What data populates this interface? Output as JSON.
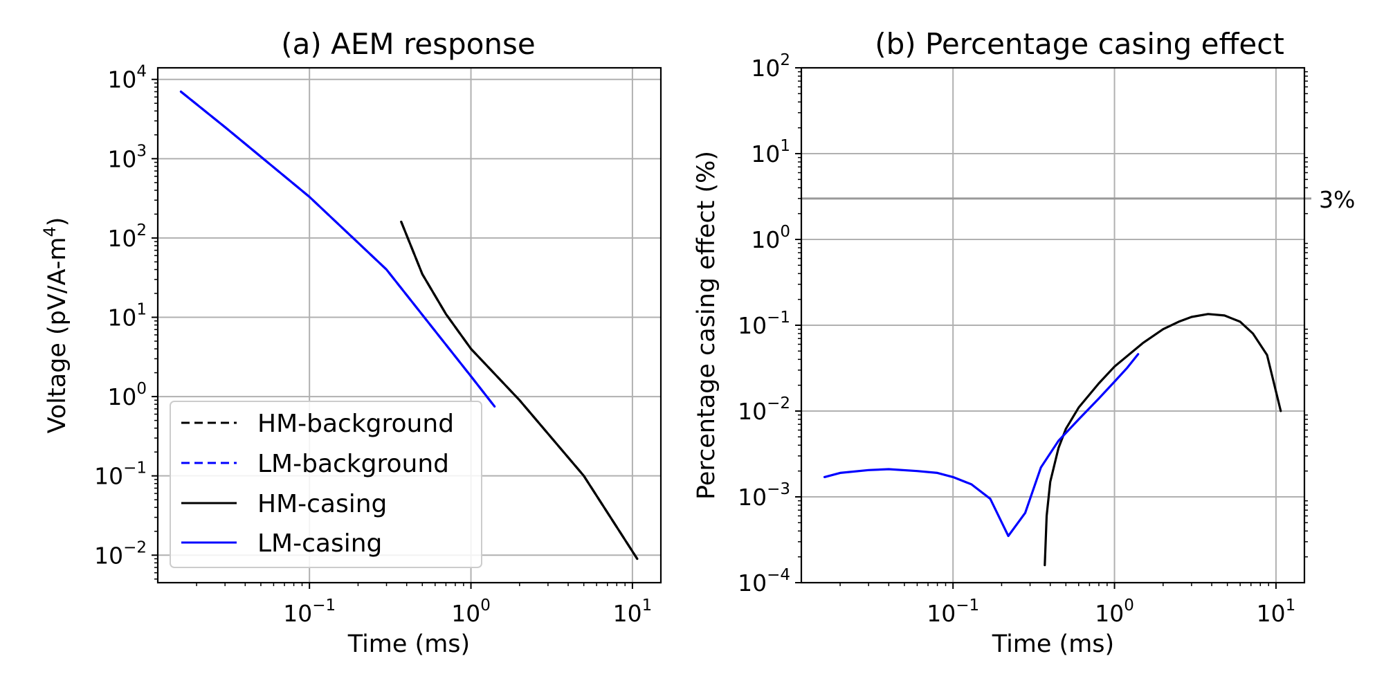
{
  "chart_data": [
    {
      "type": "line",
      "title": "(a) AEM response",
      "xlabel": "Time (ms)",
      "ylabel": "Voltage (pV/A-m",
      "ylabel_sup": "4",
      "ylabel_end": ")",
      "xscale": "log",
      "yscale": "log",
      "xlim": [
        0.0115,
        15
      ],
      "ylim": [
        0.0045,
        14000
      ],
      "xticks": [
        0.1,
        1,
        10
      ],
      "xtick_labels": [
        {
          "base": "10",
          "exp": "−1"
        },
        {
          "base": "10",
          "exp": "0"
        },
        {
          "base": "10",
          "exp": "1"
        }
      ],
      "yticks": [
        0.01,
        0.1,
        1,
        10,
        100,
        1000,
        10000
      ],
      "ytick_labels": [
        {
          "base": "10",
          "exp": "−2"
        },
        {
          "base": "10",
          "exp": "−1"
        },
        {
          "base": "10",
          "exp": "0"
        },
        {
          "base": "10",
          "exp": "1"
        },
        {
          "base": "10",
          "exp": "2"
        },
        {
          "base": "10",
          "exp": "3"
        },
        {
          "base": "10",
          "exp": "4"
        }
      ],
      "grid": true,
      "legend_position": "lower-left",
      "legend": [
        {
          "label": "HM-background",
          "color": "#000000",
          "style": "dashed"
        },
        {
          "label": "LM-background",
          "color": "#0000ff",
          "style": "dashed"
        },
        {
          "label": "HM-casing",
          "color": "#000000",
          "style": "solid"
        },
        {
          "label": "LM-casing",
          "color": "#0000ff",
          "style": "solid"
        }
      ],
      "series": [
        {
          "name": "HM-background",
          "color": "#000000",
          "style": "dashed",
          "x": [
            0.37,
            0.5,
            0.7,
            1.0,
            2.0,
            5.0,
            10.7
          ],
          "y": [
            160,
            35,
            11,
            4.0,
            0.9,
            0.1,
            0.009
          ]
        },
        {
          "name": "LM-background",
          "color": "#0000ff",
          "style": "dashed",
          "x": [
            0.016,
            0.03,
            0.1,
            0.3,
            1.0,
            1.4
          ],
          "y": [
            7000,
            2500,
            330,
            40,
            1.8,
            0.75
          ]
        },
        {
          "name": "HM-casing",
          "color": "#000000",
          "style": "solid",
          "x": [
            0.37,
            0.5,
            0.7,
            1.0,
            2.0,
            5.0,
            10.7
          ],
          "y": [
            160,
            35,
            11,
            4.0,
            0.9,
            0.1,
            0.009
          ]
        },
        {
          "name": "LM-casing",
          "color": "#0000ff",
          "style": "solid",
          "x": [
            0.016,
            0.03,
            0.1,
            0.3,
            1.0,
            1.4
          ],
          "y": [
            7000,
            2500,
            330,
            40,
            1.8,
            0.75
          ]
        }
      ]
    },
    {
      "type": "line",
      "title": "(b) Percentage casing effect",
      "xlabel": "Time (ms)",
      "ylabel": "Percentage casing effect (%)",
      "xscale": "log",
      "yscale": "log",
      "xlim": [
        0.0115,
        15
      ],
      "ylim": [
        0.0001,
        100
      ],
      "xticks": [
        0.1,
        1,
        10
      ],
      "xtick_labels": [
        {
          "base": "10",
          "exp": "−1"
        },
        {
          "base": "10",
          "exp": "0"
        },
        {
          "base": "10",
          "exp": "1"
        }
      ],
      "yticks": [
        0.0001,
        0.001,
        0.01,
        0.1,
        1,
        10,
        100
      ],
      "ytick_labels": [
        {
          "base": "10",
          "exp": "−4"
        },
        {
          "base": "10",
          "exp": "−3"
        },
        {
          "base": "10",
          "exp": "−2"
        },
        {
          "base": "10",
          "exp": "−1"
        },
        {
          "base": "10",
          "exp": "0"
        },
        {
          "base": "10",
          "exp": "1"
        },
        {
          "base": "10",
          "exp": "2"
        }
      ],
      "grid": true,
      "hline": {
        "y": 3,
        "label": "3%",
        "color": "#999999"
      },
      "series": [
        {
          "color": "#000000",
          "style": "solid",
          "x": [
            0.37,
            0.38,
            0.4,
            0.45,
            0.5,
            0.6,
            0.8,
            1.0,
            1.5,
            2.0,
            2.5,
            3.0,
            3.8,
            4.8,
            6.0,
            7.2,
            8.8,
            10.7
          ],
          "y": [
            0.00016,
            0.0006,
            0.0015,
            0.0037,
            0.0062,
            0.011,
            0.021,
            0.033,
            0.062,
            0.09,
            0.11,
            0.125,
            0.135,
            0.13,
            0.11,
            0.08,
            0.045,
            0.01
          ]
        },
        {
          "color": "#0000ff",
          "style": "solid",
          "x": [
            0.016,
            0.02,
            0.03,
            0.04,
            0.06,
            0.08,
            0.1,
            0.13,
            0.17,
            0.22,
            0.28,
            0.35,
            0.45,
            0.6,
            0.8,
            1.0,
            1.2,
            1.4
          ],
          "y": [
            0.0017,
            0.0019,
            0.00205,
            0.0021,
            0.002,
            0.0019,
            0.0017,
            0.0014,
            0.00095,
            0.00035,
            0.00065,
            0.0022,
            0.0045,
            0.008,
            0.014,
            0.022,
            0.032,
            0.046
          ]
        }
      ]
    }
  ]
}
